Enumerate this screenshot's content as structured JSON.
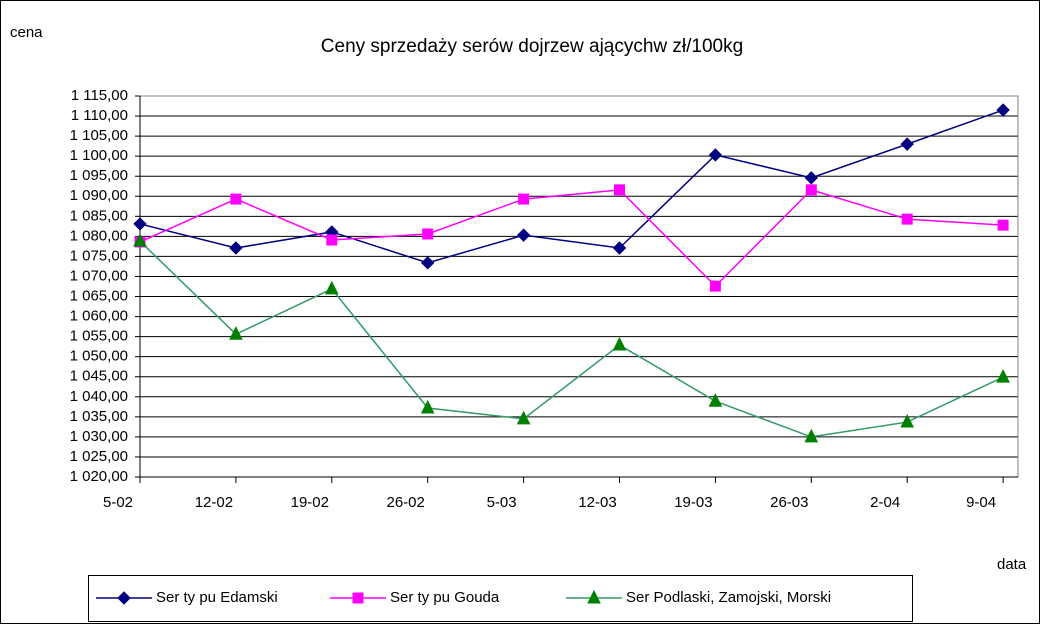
{
  "chart_data": {
    "type": "line",
    "title": "Ceny sprzedaży serów dojrzew ającychw zł/100kg",
    "y_label": "cena",
    "x_label": "data",
    "categories": [
      "5-02",
      "12-02",
      "19-02",
      "26-02",
      "5-03",
      "12-03",
      "19-03",
      "26-03",
      "2-04",
      "9-04"
    ],
    "series": [
      {
        "name": "Ser ty pu Edamski",
        "color": "#000080",
        "marker": "diamond",
        "values": [
          1083.1,
          1077.1,
          1081.1,
          1073.4,
          1080.3,
          1077.1,
          1100.3,
          1094.6,
          1103.0,
          1111.5
        ]
      },
      {
        "name": "Ser ty pu Gouda",
        "color": "#ff00ff",
        "marker": "square",
        "values": [
          1078.6,
          1089.3,
          1079.1,
          1080.6,
          1089.3,
          1091.6,
          1067.6,
          1091.6,
          1084.3,
          1082.8
        ]
      },
      {
        "name": "Ser Podlaski, Zamojski, Morski",
        "color": "#339966",
        "marker": "triangle",
        "values": [
          1078.8,
          1055.6,
          1066.9,
          1037.2,
          1034.5,
          1052.9,
          1038.9,
          1030.0,
          1033.7,
          1044.9
        ]
      }
    ],
    "ylim": [
      1020,
      1115
    ],
    "yticks": [
      {
        "value": 1020,
        "label": "1 020,00"
      },
      {
        "value": 1025,
        "label": "1 025,00"
      },
      {
        "value": 1030,
        "label": "1 030,00"
      },
      {
        "value": 1035,
        "label": "1 035,00"
      },
      {
        "value": 1040,
        "label": "1 040,00"
      },
      {
        "value": 1045,
        "label": "1 045,00"
      },
      {
        "value": 1050,
        "label": "1 050,00"
      },
      {
        "value": 1055,
        "label": "1 055,00"
      },
      {
        "value": 1060,
        "label": "1 060,00"
      },
      {
        "value": 1065,
        "label": "1 065,00"
      },
      {
        "value": 1070,
        "label": "1 070,00"
      },
      {
        "value": 1075,
        "label": "1 075,00"
      },
      {
        "value": 1080,
        "label": "1 080,00"
      },
      {
        "value": 1085,
        "label": "1 085,00"
      },
      {
        "value": 1090,
        "label": "1 090,00"
      },
      {
        "value": 1095,
        "label": "1 095,00"
      },
      {
        "value": 1100,
        "label": "1 100,00"
      },
      {
        "value": 1105,
        "label": "1 105,00"
      },
      {
        "value": 1110,
        "label": "1 110,00"
      },
      {
        "value": 1115,
        "label": "1 115,00"
      }
    ],
    "grid": true,
    "legend": "bottom"
  }
}
